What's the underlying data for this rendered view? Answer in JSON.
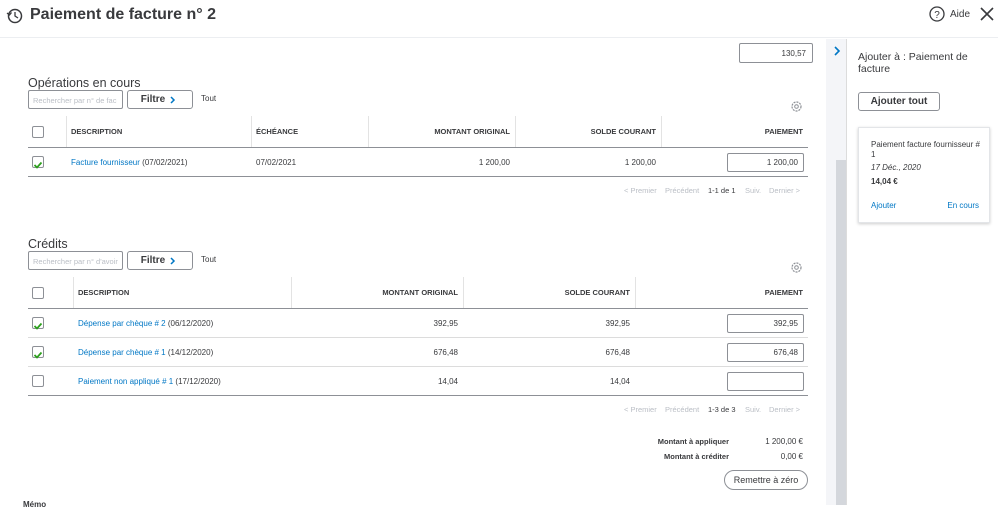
{
  "header": {
    "title": "Paiement de facture n° 2",
    "help": "Aide"
  },
  "amount_received": "130,57",
  "outstanding": {
    "title": "Opérations en cours",
    "search_placeholder": "Rechercher par n° de fac",
    "filter": "Filtre",
    "filter_all": "Tout",
    "columns": [
      "DESCRIPTION",
      "ÉCHÉANCE",
      "MONTANT ORIGINAL",
      "SOLDE COURANT",
      "PAIEMENT"
    ],
    "rows": [
      {
        "checked": true,
        "link": "Facture fournisseur",
        "date": "(07/02/2021)",
        "due": "07/02/2021",
        "original": "1 200,00",
        "balance": "1 200,00",
        "payment": "1 200,00"
      }
    ],
    "pagination": {
      "first": "< Premier",
      "prev": "Précédent",
      "range": "1-1 de 1",
      "next": "Suiv.",
      "last": "Dernier >"
    }
  },
  "credits": {
    "title": "Crédits",
    "search_placeholder": "Rechercher par n° d'avoir",
    "filter": "Filtre",
    "filter_all": "Tout",
    "columns": [
      "DESCRIPTION",
      "MONTANT ORIGINAL",
      "SOLDE COURANT",
      "PAIEMENT"
    ],
    "rows": [
      {
        "checked": true,
        "link": "Dépense par chèque # 2",
        "date": "(06/12/2020)",
        "original": "392,95",
        "balance": "392,95",
        "payment": "392,95"
      },
      {
        "checked": true,
        "link": "Dépense par chèque # 1",
        "date": "(14/12/2020)",
        "original": "676,48",
        "balance": "676,48",
        "payment": "676,48"
      },
      {
        "checked": false,
        "link": "Paiement non appliqué # 1",
        "date": "(17/12/2020)",
        "original": "14,04",
        "balance": "14,04",
        "payment": ""
      }
    ],
    "pagination": {
      "first": "< Premier",
      "prev": "Précédent",
      "range": "1-3 de 3",
      "next": "Suiv.",
      "last": "Dernier >"
    }
  },
  "totals": {
    "apply_label": "Montant à appliquer",
    "apply_value": "1 200,00 €",
    "credit_label": "Montant à créditer",
    "credit_value": "0,00 €"
  },
  "reset": "Remettre à zéro",
  "memo": "Mémo",
  "side_panel": {
    "title": "Ajouter à : Paiement de facture",
    "add_all": "Ajouter tout",
    "card": {
      "title": "Paiement facture fournisseur # 1",
      "date": "17 Déc., 2020",
      "amount": "14,04 €",
      "add": "Ajouter",
      "status": "En cours"
    }
  }
}
